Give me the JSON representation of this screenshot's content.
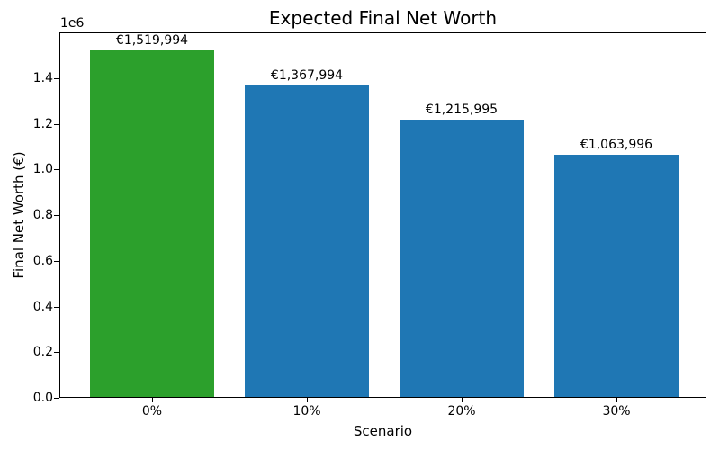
{
  "figure": {
    "background": "#ffffff",
    "text_color": "#000000",
    "spine_color": "#000000"
  },
  "chart_data": {
    "type": "bar",
    "title": "Expected Final Net Worth",
    "xlabel": "Scenario",
    "ylabel": "Final Net Worth (€)",
    "y_offset_text": "1e6",
    "categories": [
      "0%",
      "10%",
      "20%",
      "30%"
    ],
    "values": [
      1519994,
      1367994,
      1215995,
      1063996
    ],
    "value_labels": [
      "€1,519,994",
      "€1,367,994",
      "€1,215,995",
      "€1,063,996"
    ],
    "bar_colors": [
      "#2ca02c",
      "#1f77b4",
      "#1f77b4",
      "#1f77b4"
    ],
    "ylim": [
      0,
      1600000
    ],
    "yticks": {
      "values": [
        0,
        200000,
        400000,
        600000,
        800000,
        1000000,
        1200000,
        1400000
      ],
      "labels": [
        "0.0",
        "0.2",
        "0.4",
        "0.6",
        "0.8",
        "1.0",
        "1.2",
        "1.4"
      ]
    },
    "grid": false,
    "legend": false
  }
}
